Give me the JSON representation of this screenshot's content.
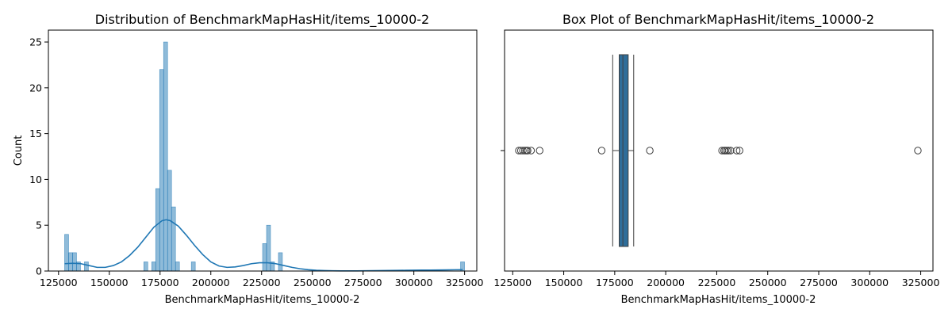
{
  "chart_data": [
    {
      "type": "histogram",
      "title": "Distribution of BenchmarkMapHasHit/items_10000-2",
      "xlabel": "BenchmarkMapHasHit/items_10000-2",
      "ylabel": "Count",
      "xlim": [
        120000,
        331000
      ],
      "ylim": [
        0,
        26.3
      ],
      "xticks": [
        125000,
        150000,
        175000,
        200000,
        225000,
        250000,
        275000,
        300000,
        325000
      ],
      "yticks": [
        0,
        5,
        10,
        15,
        20,
        25
      ],
      "bin_start": 128000,
      "bin_width": 1950,
      "counts": [
        4,
        2,
        2,
        1,
        0,
        1,
        0,
        0,
        0,
        0,
        0,
        0,
        0,
        0,
        0,
        0,
        0,
        0,
        0,
        0,
        1,
        0,
        1,
        9,
        22,
        25,
        11,
        7,
        1,
        0,
        0,
        0,
        1,
        0,
        0,
        0,
        0,
        0,
        0,
        0,
        0,
        0,
        0,
        0,
        0,
        0,
        0,
        0,
        0,
        0,
        3,
        5,
        1,
        0,
        2,
        0,
        0,
        0,
        0,
        0,
        0,
        0,
        0,
        0,
        0,
        0,
        0,
        0,
        0,
        0,
        0,
        0,
        0,
        0,
        0,
        0,
        0,
        0,
        0,
        0,
        0,
        0,
        0,
        0,
        0,
        0,
        0,
        0,
        0,
        0,
        0,
        0,
        0,
        0,
        0,
        0,
        0,
        0,
        0,
        0,
        1
      ],
      "bar_color": "#1f77b4",
      "kde": {
        "x": [
          128000,
          132000,
          136000,
          140000,
          144000,
          148000,
          152000,
          156000,
          160000,
          164000,
          168000,
          172000,
          176000,
          178000,
          180000,
          184000,
          188000,
          192000,
          196000,
          200000,
          204000,
          208000,
          212000,
          216000,
          220000,
          224000,
          228000,
          232000,
          236000,
          240000,
          244000,
          248000,
          252000,
          256000,
          260000,
          264000,
          268000,
          272000,
          276000,
          280000,
          284000,
          288000,
          292000,
          296000,
          300000,
          304000,
          308000,
          312000,
          316000,
          320000,
          324000
        ],
        "y": [
          0.8,
          0.85,
          0.8,
          0.6,
          0.4,
          0.4,
          0.6,
          1.0,
          1.7,
          2.6,
          3.7,
          4.8,
          5.5,
          5.6,
          5.5,
          4.9,
          3.9,
          2.8,
          1.8,
          1.0,
          0.55,
          0.4,
          0.45,
          0.6,
          0.8,
          0.9,
          0.9,
          0.8,
          0.6,
          0.4,
          0.25,
          0.15,
          0.08,
          0.05,
          0.03,
          0.02,
          0.02,
          0.02,
          0.03,
          0.04,
          0.05,
          0.06,
          0.07,
          0.08,
          0.09,
          0.1,
          0.1,
          0.11,
          0.12,
          0.14,
          0.15
        ]
      }
    },
    {
      "type": "box",
      "title": "Box Plot of BenchmarkMapHasHit/items_10000-2",
      "xlabel": "BenchmarkMapHasHit/items_10000-2",
      "xlim": [
        121000,
        331000
      ],
      "xticks": [
        125000,
        150000,
        175000,
        200000,
        225000,
        250000,
        275000,
        300000,
        325000
      ],
      "q1": 177200,
      "median": 179000,
      "q3": 181600,
      "whisker_low": 174000,
      "whisker_high": 184300,
      "outliers": [
        128000,
        129000,
        130000,
        131000,
        131800,
        132300,
        134000,
        138200,
        168600,
        192200,
        227600,
        228600,
        229200,
        230000,
        230800,
        231800,
        234800,
        236200,
        323600
      ],
      "box_color": "#2e6d9a"
    }
  ]
}
